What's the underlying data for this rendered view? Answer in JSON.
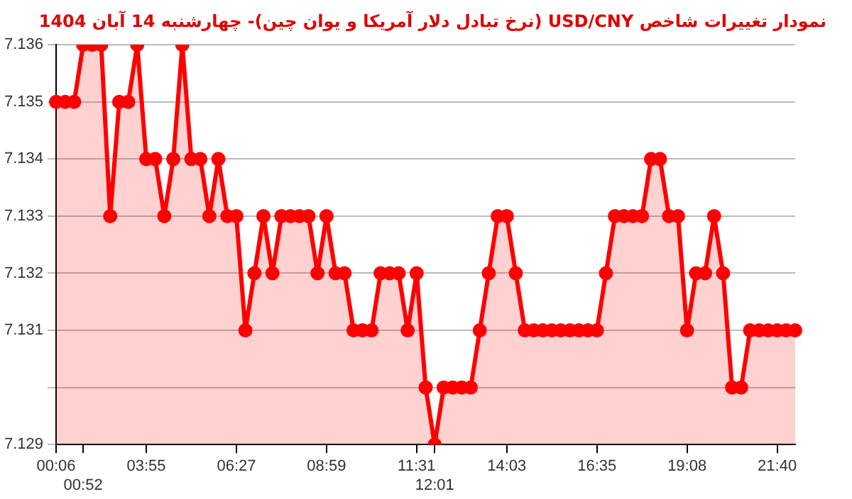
{
  "chart_data": {
    "type": "area",
    "title": "نمودار تغییرات شاخص USD/CNY (نرخ تبادل دلار آمریکا و یوان چین)- چهارشنبه  14 آبان 1404",
    "categories": [
      "00:06",
      null,
      null,
      "00:52",
      null,
      null,
      null,
      null,
      null,
      null,
      "03:55",
      null,
      null,
      null,
      null,
      null,
      null,
      null,
      null,
      null,
      "06:27",
      null,
      null,
      null,
      null,
      null,
      null,
      null,
      null,
      null,
      "08:59",
      null,
      null,
      null,
      null,
      null,
      null,
      null,
      null,
      null,
      "11:31",
      null,
      "12:01",
      null,
      null,
      null,
      null,
      null,
      null,
      null,
      "14:03",
      null,
      null,
      null,
      null,
      null,
      null,
      null,
      null,
      null,
      "16:35",
      null,
      null,
      null,
      null,
      null,
      null,
      null,
      null,
      null,
      "19:08",
      null,
      null,
      null,
      null,
      null,
      null,
      null,
      null,
      null,
      "21:40",
      null,
      null
    ],
    "series": [
      {
        "color": "#ff0000",
        "values": [
          7.135,
          7.135,
          7.135,
          7.136,
          7.136,
          7.136,
          7.133,
          7.135,
          7.135,
          7.136,
          7.134,
          7.134,
          7.133,
          7.134,
          7.136,
          7.134,
          7.134,
          7.133,
          7.134,
          7.133,
          7.133,
          7.131,
          7.132,
          7.133,
          7.132,
          7.133,
          7.133,
          7.133,
          7.133,
          7.132,
          7.133,
          7.132,
          7.132,
          7.131,
          7.131,
          7.131,
          7.132,
          7.132,
          7.132,
          7.131,
          7.132,
          7.13,
          7.129,
          7.13,
          7.13,
          7.13,
          7.13,
          7.131,
          7.132,
          7.133,
          7.133,
          7.132,
          7.131,
          7.131,
          7.131,
          7.131,
          7.131,
          7.131,
          7.131,
          7.131,
          7.131,
          7.132,
          7.133,
          7.133,
          7.133,
          7.133,
          7.134,
          7.134,
          7.133,
          7.133,
          7.131,
          7.132,
          7.132,
          7.133,
          7.132,
          7.13,
          7.13,
          7.131,
          7.131,
          7.131,
          7.131,
          7.131,
          7.131
        ]
      }
    ],
    "ylim": [
      7.129,
      7.136
    ],
    "yticks": [
      7.129,
      {
        "value": 7.13,
        "label": null
      },
      7.131,
      7.132,
      7.133,
      7.134,
      7.135,
      7.136
    ],
    "grid": "y",
    "marker": "circle",
    "line_style": "solid",
    "legend": false
  }
}
